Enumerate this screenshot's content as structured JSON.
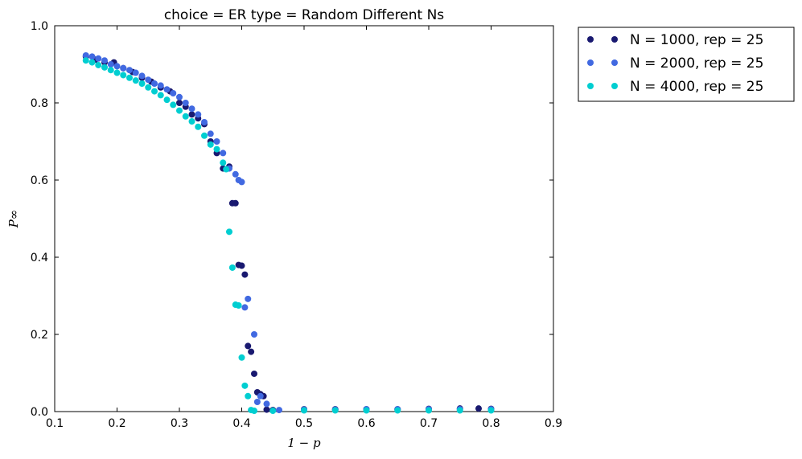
{
  "chart_data": {
    "type": "scatter",
    "title": "choice = ER type = Random Different Ns",
    "xlabel": "1 − p",
    "ylabel": "P∞",
    "xlim": [
      0.1,
      0.9
    ],
    "ylim": [
      0.0,
      1.0
    ],
    "xticks": [
      0.1,
      0.2,
      0.3,
      0.4,
      0.5,
      0.6,
      0.7,
      0.8,
      0.9
    ],
    "xtick_labels": [
      "0.1",
      "0.2",
      "0.3",
      "0.4",
      "0.5",
      "0.6",
      "0.7",
      "0.8",
      "0.9"
    ],
    "yticks": [
      0.0,
      0.2,
      0.4,
      0.6,
      0.8,
      1.0
    ],
    "ytick_labels": [
      "0.0",
      "0.2",
      "0.4",
      "0.6",
      "0.8",
      "1.0"
    ],
    "grid": false,
    "legend_placement": "outside-right-top",
    "series": [
      {
        "name": "N = 1000, rep = 25",
        "color": "#191970",
        "x": [
          0.15,
          0.165,
          0.18,
          0.195,
          0.21,
          0.225,
          0.24,
          0.255,
          0.27,
          0.285,
          0.3,
          0.31,
          0.32,
          0.33,
          0.34,
          0.35,
          0.36,
          0.37,
          0.38,
          0.385,
          0.39,
          0.395,
          0.4,
          0.405,
          0.41,
          0.415,
          0.42,
          0.425,
          0.43,
          0.435,
          0.44,
          0.45,
          0.5,
          0.55,
          0.6,
          0.65,
          0.7,
          0.75,
          0.78,
          0.8
        ],
        "y": [
          0.92,
          0.912,
          0.905,
          0.905,
          0.89,
          0.88,
          0.865,
          0.855,
          0.84,
          0.83,
          0.8,
          0.79,
          0.77,
          0.76,
          0.745,
          0.7,
          0.67,
          0.63,
          0.635,
          0.54,
          0.54,
          0.38,
          0.378,
          0.355,
          0.17,
          0.155,
          0.098,
          0.05,
          0.045,
          0.04,
          0.005,
          0.004,
          0.006,
          0.006,
          0.006,
          0.006,
          0.007,
          0.008,
          0.008,
          0.007
        ]
      },
      {
        "name": "N = 2000, rep = 25",
        "color": "#4169e1",
        "x": [
          0.15,
          0.16,
          0.17,
          0.18,
          0.19,
          0.2,
          0.21,
          0.22,
          0.23,
          0.24,
          0.25,
          0.26,
          0.27,
          0.28,
          0.29,
          0.3,
          0.31,
          0.32,
          0.33,
          0.34,
          0.35,
          0.36,
          0.37,
          0.38,
          0.39,
          0.395,
          0.4,
          0.405,
          0.41,
          0.42,
          0.425,
          0.43,
          0.44,
          0.46,
          0.5,
          0.55,
          0.6,
          0.65,
          0.7,
          0.75,
          0.8
        ],
        "y": [
          0.923,
          0.92,
          0.915,
          0.91,
          0.9,
          0.895,
          0.89,
          0.885,
          0.878,
          0.87,
          0.86,
          0.85,
          0.845,
          0.835,
          0.825,
          0.815,
          0.8,
          0.785,
          0.77,
          0.75,
          0.72,
          0.7,
          0.67,
          0.63,
          0.615,
          0.6,
          0.595,
          0.27,
          0.292,
          0.2,
          0.025,
          0.04,
          0.02,
          0.004,
          0.005,
          0.005,
          0.006,
          0.006,
          0.006,
          0.006,
          0.006
        ]
      },
      {
        "name": "N = 4000, rep = 25",
        "color": "#00ced1",
        "x": [
          0.15,
          0.16,
          0.17,
          0.18,
          0.19,
          0.2,
          0.21,
          0.22,
          0.23,
          0.24,
          0.25,
          0.26,
          0.27,
          0.28,
          0.29,
          0.3,
          0.31,
          0.32,
          0.33,
          0.34,
          0.35,
          0.36,
          0.37,
          0.375,
          0.38,
          0.385,
          0.39,
          0.395,
          0.4,
          0.405,
          0.41,
          0.415,
          0.42,
          0.45,
          0.5,
          0.55,
          0.6,
          0.65,
          0.7,
          0.75,
          0.8
        ],
        "y": [
          0.91,
          0.905,
          0.898,
          0.892,
          0.885,
          0.878,
          0.872,
          0.865,
          0.858,
          0.85,
          0.84,
          0.83,
          0.82,
          0.808,
          0.795,
          0.78,
          0.765,
          0.752,
          0.738,
          0.715,
          0.692,
          0.68,
          0.645,
          0.628,
          0.466,
          0.373,
          0.277,
          0.275,
          0.14,
          0.067,
          0.04,
          0.004,
          0.002,
          0.002,
          0.003,
          0.003,
          0.003,
          0.003,
          0.003,
          0.003,
          0.003
        ]
      }
    ]
  }
}
